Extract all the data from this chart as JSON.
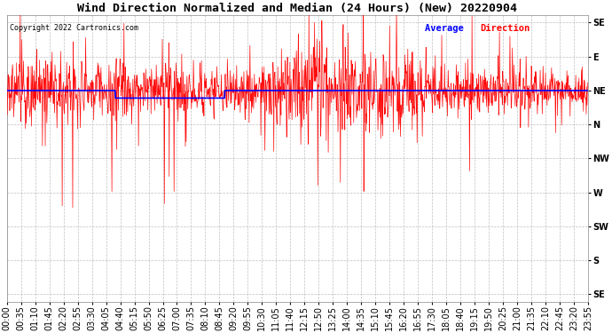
{
  "title": "Wind Direction Normalized and Median (24 Hours) (New) 20220904",
  "copyright": "Copyright 2022 Cartronics.com",
  "y_labels": [
    "SE",
    "E",
    "NE",
    "N",
    "NW",
    "W",
    "SW",
    "S",
    "SE"
  ],
  "y_ticks": [
    0,
    45,
    90,
    135,
    180,
    225,
    270,
    315,
    360
  ],
  "y_lim": [
    -10,
    370
  ],
  "background_color": "#ffffff",
  "grid_color": "#b0b0b0",
  "title_fontsize": 9.5,
  "tick_fontsize": 7,
  "avg_direction": 90,
  "x_tick_labels": [
    "00:00",
    "00:35",
    "01:10",
    "01:45",
    "02:20",
    "02:55",
    "03:30",
    "04:05",
    "04:40",
    "05:15",
    "05:50",
    "06:25",
    "07:00",
    "07:35",
    "08:10",
    "08:45",
    "09:20",
    "09:55",
    "10:30",
    "11:05",
    "11:40",
    "12:15",
    "12:50",
    "13:25",
    "14:00",
    "14:35",
    "15:10",
    "15:45",
    "16:20",
    "16:55",
    "17:30",
    "18:05",
    "18:40",
    "19:15",
    "19:50",
    "20:25",
    "21:00",
    "21:35",
    "22:10",
    "22:45",
    "23:20",
    "23:55"
  ]
}
